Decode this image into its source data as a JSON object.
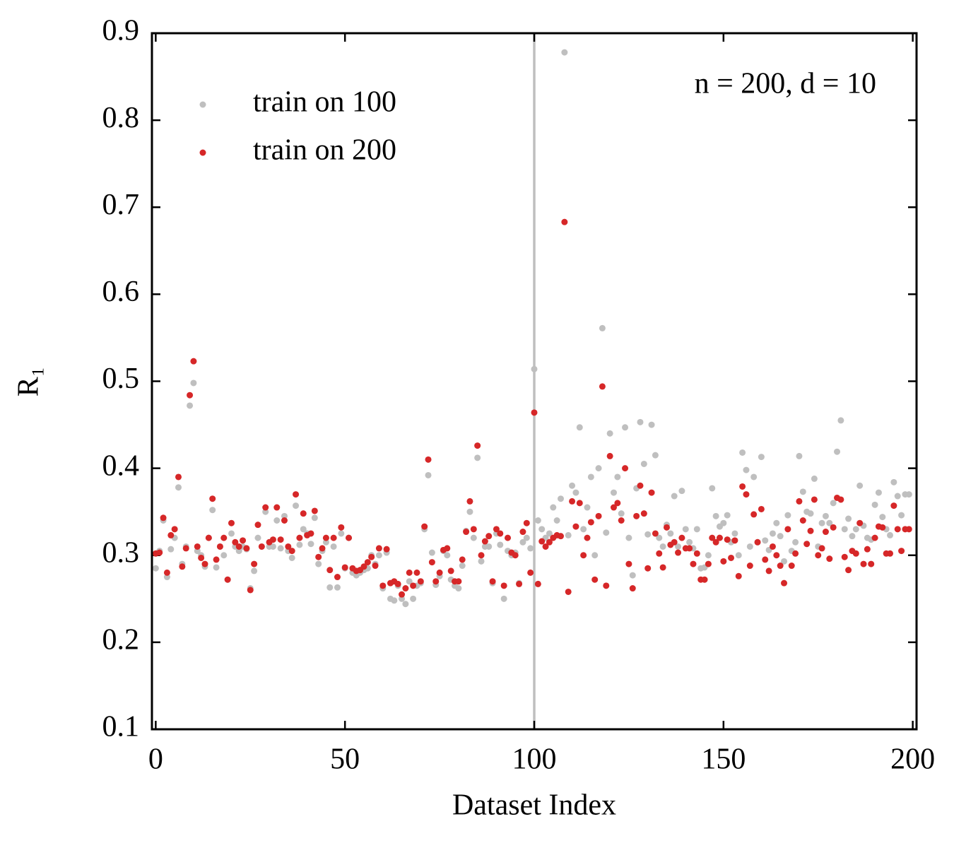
{
  "chart_data": {
    "type": "scatter",
    "xlabel": "Dataset Index",
    "ylabel": "R₁",
    "annotation": "n = 200, d = 10",
    "xlim": [
      -1,
      201
    ],
    "ylim": [
      0.1,
      0.9
    ],
    "xticks": [
      0,
      50,
      100,
      150,
      200
    ],
    "yticks": [
      0.1,
      0.2,
      0.3,
      0.4,
      0.5,
      0.6,
      0.7,
      0.8,
      0.9
    ],
    "vline": 100,
    "vline_color": "#bfbfbf",
    "legend": "upper left",
    "x": [
      0,
      1,
      2,
      3,
      4,
      5,
      6,
      7,
      8,
      9,
      10,
      11,
      12,
      13,
      14,
      15,
      16,
      17,
      18,
      19,
      20,
      21,
      22,
      23,
      24,
      25,
      26,
      27,
      28,
      29,
      30,
      31,
      32,
      33,
      34,
      35,
      36,
      37,
      38,
      39,
      40,
      41,
      42,
      43,
      44,
      45,
      46,
      47,
      48,
      49,
      50,
      51,
      52,
      53,
      54,
      55,
      56,
      57,
      58,
      59,
      60,
      61,
      62,
      63,
      64,
      65,
      66,
      67,
      68,
      69,
      70,
      71,
      72,
      73,
      74,
      75,
      76,
      77,
      78,
      79,
      80,
      81,
      82,
      83,
      84,
      85,
      86,
      87,
      88,
      89,
      90,
      91,
      92,
      93,
      94,
      95,
      96,
      97,
      98,
      99,
      100,
      101,
      102,
      103,
      104,
      105,
      106,
      107,
      108,
      109,
      110,
      111,
      112,
      113,
      114,
      115,
      116,
      117,
      118,
      119,
      120,
      121,
      122,
      123,
      124,
      125,
      126,
      127,
      128,
      129,
      130,
      131,
      132,
      133,
      134,
      135,
      136,
      137,
      138,
      139,
      140,
      141,
      142,
      143,
      144,
      145,
      146,
      147,
      148,
      149,
      150,
      151,
      152,
      153,
      154,
      155,
      156,
      157,
      158,
      159,
      160,
      161,
      162,
      163,
      164,
      165,
      166,
      167,
      168,
      169,
      170,
      171,
      172,
      173,
      174,
      175,
      176,
      177,
      178,
      179,
      180,
      181,
      182,
      183,
      184,
      185,
      186,
      187,
      188,
      189,
      190,
      191,
      192,
      193,
      194,
      195,
      196,
      197,
      198,
      199
    ],
    "series": [
      {
        "name": "train on 100",
        "color": "#bfbfbf",
        "values": [
          0.285,
          0.305,
          0.34,
          0.275,
          0.307,
          0.32,
          0.378,
          0.29,
          0.31,
          0.472,
          0.498,
          0.305,
          0.3,
          0.287,
          0.32,
          0.352,
          0.286,
          0.31,
          0.3,
          0.272,
          0.325,
          0.31,
          0.305,
          0.31,
          0.307,
          0.262,
          0.282,
          0.32,
          0.31,
          0.35,
          0.31,
          0.31,
          0.34,
          0.308,
          0.345,
          0.305,
          0.297,
          0.357,
          0.312,
          0.33,
          0.325,
          0.313,
          0.343,
          0.29,
          0.305,
          0.315,
          0.263,
          0.31,
          0.263,
          0.325,
          0.285,
          0.32,
          0.28,
          0.277,
          0.28,
          0.283,
          0.285,
          0.3,
          0.29,
          0.3,
          0.262,
          0.303,
          0.25,
          0.248,
          0.265,
          0.25,
          0.244,
          0.27,
          0.25,
          0.265,
          0.268,
          0.33,
          0.392,
          0.303,
          0.266,
          0.276,
          0.305,
          0.3,
          0.272,
          0.265,
          0.262,
          0.288,
          0.328,
          0.35,
          0.32,
          0.412,
          0.293,
          0.31,
          0.31,
          0.268,
          0.325,
          0.312,
          0.25,
          0.305,
          0.3,
          0.303,
          0.268,
          0.315,
          0.32,
          0.308,
          0.514,
          0.34,
          0.33,
          0.32,
          0.325,
          0.355,
          0.34,
          0.365,
          0.878,
          0.323,
          0.38,
          0.372,
          0.447,
          0.33,
          0.355,
          0.39,
          0.3,
          0.4,
          0.561,
          0.326,
          0.44,
          0.372,
          0.39,
          0.348,
          0.447,
          0.32,
          0.277,
          0.377,
          0.453,
          0.405,
          0.324,
          0.45,
          0.415,
          0.32,
          0.31,
          0.335,
          0.325,
          0.368,
          0.31,
          0.374,
          0.33,
          0.315,
          0.308,
          0.33,
          0.285,
          0.286,
          0.3,
          0.377,
          0.345,
          0.333,
          0.337,
          0.346,
          0.315,
          0.325,
          0.3,
          0.418,
          0.398,
          0.31,
          0.39,
          0.315,
          0.413,
          0.317,
          0.306,
          0.325,
          0.337,
          0.322,
          0.293,
          0.346,
          0.305,
          0.315,
          0.414,
          0.373,
          0.35,
          0.348,
          0.388,
          0.31,
          0.337,
          0.345,
          0.337,
          0.36,
          0.419,
          0.455,
          0.33,
          0.342,
          0.322,
          0.33,
          0.38,
          0.334,
          0.32,
          0.318,
          0.358,
          0.372,
          0.344,
          0.33,
          0.323,
          0.384,
          0.368,
          0.346,
          0.37,
          0.37
        ]
      },
      {
        "name": "train on 200",
        "color": "#d62728",
        "values": [
          0.302,
          0.303,
          0.343,
          0.28,
          0.323,
          0.33,
          0.39,
          0.287,
          0.308,
          0.484,
          0.523,
          0.31,
          0.297,
          0.29,
          0.32,
          0.365,
          0.295,
          0.31,
          0.32,
          0.272,
          0.337,
          0.315,
          0.31,
          0.317,
          0.308,
          0.26,
          0.29,
          0.335,
          0.31,
          0.355,
          0.315,
          0.318,
          0.355,
          0.318,
          0.34,
          0.31,
          0.305,
          0.37,
          0.32,
          0.348,
          0.323,
          0.325,
          0.351,
          0.298,
          0.308,
          0.32,
          0.283,
          0.32,
          0.275,
          0.332,
          0.286,
          0.32,
          0.285,
          0.282,
          0.283,
          0.287,
          0.292,
          0.298,
          0.288,
          0.308,
          0.265,
          0.307,
          0.268,
          0.27,
          0.267,
          0.255,
          0.262,
          0.28,
          0.265,
          0.28,
          0.27,
          0.333,
          0.41,
          0.292,
          0.27,
          0.28,
          0.306,
          0.308,
          0.282,
          0.27,
          0.27,
          0.295,
          0.327,
          0.362,
          0.33,
          0.426,
          0.3,
          0.316,
          0.322,
          0.27,
          0.33,
          0.325,
          0.265,
          0.32,
          0.303,
          0.3,
          0.267,
          0.327,
          0.337,
          0.28,
          0.464,
          0.267,
          0.316,
          0.31,
          0.315,
          0.32,
          0.323,
          0.322,
          0.683,
          0.258,
          0.362,
          0.333,
          0.36,
          0.3,
          0.32,
          0.338,
          0.272,
          0.345,
          0.494,
          0.265,
          0.414,
          0.355,
          0.36,
          0.34,
          0.4,
          0.29,
          0.262,
          0.345,
          0.38,
          0.348,
          0.285,
          0.372,
          0.325,
          0.302,
          0.286,
          0.332,
          0.312,
          0.315,
          0.303,
          0.32,
          0.308,
          0.308,
          0.29,
          0.302,
          0.272,
          0.272,
          0.29,
          0.32,
          0.315,
          0.32,
          0.293,
          0.318,
          0.297,
          0.317,
          0.276,
          0.379,
          0.37,
          0.288,
          0.347,
          0.315,
          0.353,
          0.295,
          0.282,
          0.31,
          0.3,
          0.288,
          0.268,
          0.33,
          0.288,
          0.302,
          0.362,
          0.34,
          0.313,
          0.328,
          0.364,
          0.3,
          0.308,
          0.327,
          0.296,
          0.332,
          0.366,
          0.364,
          0.298,
          0.283,
          0.305,
          0.302,
          0.337,
          0.29,
          0.307,
          0.29,
          0.32,
          0.333,
          0.332,
          0.302,
          0.302,
          0.357,
          0.33,
          0.305,
          0.33,
          0.33
        ]
      }
    ]
  }
}
